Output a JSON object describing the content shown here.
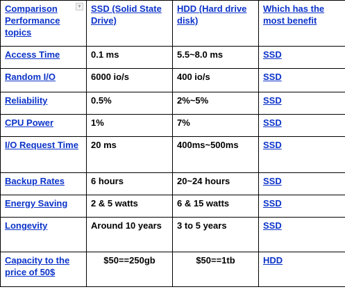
{
  "header": {
    "topics": "Comparison Performance topics",
    "ssd": "SSD (Solid State Drive)",
    "hdd": "HDD (Hard drive disk)",
    "benefit": "Which has the most benefit",
    "filter_icon": "chevron-down-icon"
  },
  "rows": [
    {
      "topic": "Access Time",
      "ssd": "0.1 ms",
      "hdd": "5.5~8.0 ms",
      "benefit": "SSD"
    },
    {
      "topic": "Random I/O",
      "ssd": "6000 io/s",
      "hdd": "400 io/s",
      "benefit": "SSD"
    },
    {
      "topic": "Reliability",
      "ssd": "0.5%",
      "hdd": "2%~5%",
      "benefit": "SSD"
    },
    {
      "topic": "CPU Power",
      "ssd": "1%",
      "hdd": "7%",
      "benefit": "SSD"
    },
    {
      "topic": "I/O Request Time",
      "ssd": "20 ms",
      "hdd": "400ms~500ms",
      "benefit": "SSD"
    },
    {
      "topic": "Backup Rates",
      "ssd": "6 hours",
      "hdd": "20~24 hours",
      "benefit": "SSD"
    },
    {
      "topic": "Energy Saving",
      "ssd": "2 & 5 watts",
      "hdd": "6 & 15 watts",
      "benefit": "SSD"
    },
    {
      "topic": "Longevity",
      "ssd": "Around 10 years",
      "hdd": "3 to 5 years",
      "benefit": "SSD"
    },
    {
      "topic": "Capacity to the price of 50$",
      "ssd": "$50==250gb",
      "hdd": "$50==1tb",
      "benefit": "HDD"
    }
  ],
  "colors": {
    "link": "#0b33c9",
    "text": "#000000",
    "border": "#000000"
  }
}
